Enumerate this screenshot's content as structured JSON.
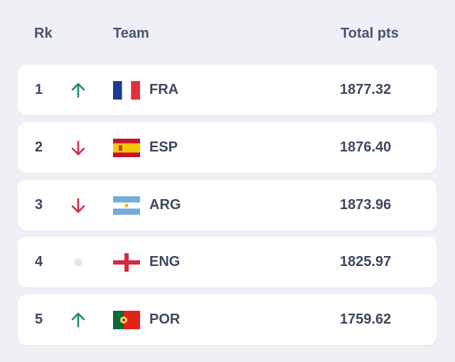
{
  "header": {
    "rank": "Rk",
    "team": "Team",
    "points": "Total pts"
  },
  "colors": {
    "up": "#1a8d6a",
    "down": "#d62a48",
    "same": "#e1e4ee"
  },
  "rows": [
    {
      "rank": "1",
      "trend": "up",
      "code": "FRA",
      "points": "1877.32",
      "flag": "france-flag"
    },
    {
      "rank": "2",
      "trend": "down",
      "code": "ESP",
      "points": "1876.40",
      "flag": "spain-flag"
    },
    {
      "rank": "3",
      "trend": "down",
      "code": "ARG",
      "points": "1873.96",
      "flag": "argentina-flag"
    },
    {
      "rank": "4",
      "trend": "same",
      "code": "ENG",
      "points": "1825.97",
      "flag": "england-flag"
    },
    {
      "rank": "5",
      "trend": "up",
      "code": "POR",
      "points": "1759.62",
      "flag": "portugal-flag"
    }
  ]
}
